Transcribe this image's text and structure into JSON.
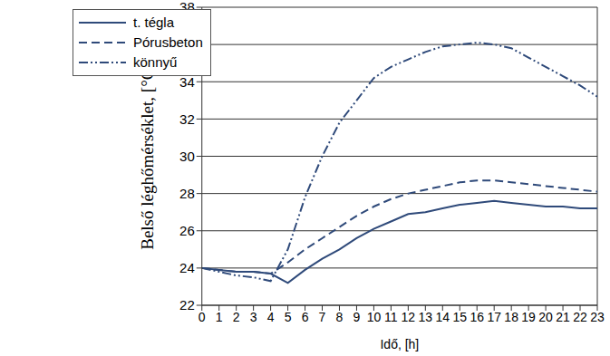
{
  "chart_data": {
    "type": "line",
    "x_label": "Idő, [h]",
    "y_label": "Belső léghőmérséklet, [°C]",
    "x": [
      0,
      1,
      2,
      3,
      4,
      5,
      6,
      7,
      8,
      9,
      10,
      11,
      12,
      13,
      14,
      15,
      16,
      17,
      18,
      19,
      20,
      21,
      22,
      23
    ],
    "xlim": [
      0,
      23
    ],
    "xticks": [
      0,
      1,
      2,
      3,
      4,
      5,
      6,
      7,
      8,
      9,
      10,
      11,
      12,
      13,
      14,
      15,
      16,
      17,
      18,
      19,
      20,
      21,
      22,
      23
    ],
    "ylim": [
      22,
      38
    ],
    "yticks": [
      22,
      24,
      26,
      28,
      30,
      32,
      34,
      36,
      38
    ],
    "grid": true,
    "legend": "upper left",
    "series": [
      {
        "name": "t. tégla",
        "color": "#2f4a7a",
        "line_style": "solid",
        "values": [
          24,
          23.9,
          23.8,
          23.8,
          23.7,
          23.2,
          23.9,
          24.5,
          25.0,
          25.6,
          26.1,
          26.5,
          26.9,
          27.0,
          27.2,
          27.4,
          27.5,
          27.6,
          27.5,
          27.4,
          27.3,
          27.3,
          27.2,
          27.2
        ]
      },
      {
        "name": "Pórusbeton",
        "color": "#2f4a7a",
        "line_style": "dashed",
        "values": [
          24,
          23.9,
          23.8,
          23.8,
          23.7,
          24.3,
          25.0,
          25.6,
          26.2,
          26.8,
          27.3,
          27.7,
          28.0,
          28.2,
          28.4,
          28.6,
          28.7,
          28.7,
          28.6,
          28.5,
          28.4,
          28.3,
          28.2,
          28.1
        ]
      },
      {
        "name": "könnyű",
        "color": "#2f4a7a",
        "line_style": "dash-dot-dot",
        "values": [
          24,
          23.8,
          23.6,
          23.5,
          23.3,
          25.0,
          27.8,
          30.0,
          31.8,
          33.0,
          34.2,
          34.8,
          35.2,
          35.6,
          35.9,
          36.0,
          36.1,
          36.0,
          35.8,
          35.3,
          34.8,
          34.3,
          33.8,
          33.2
        ]
      }
    ]
  }
}
